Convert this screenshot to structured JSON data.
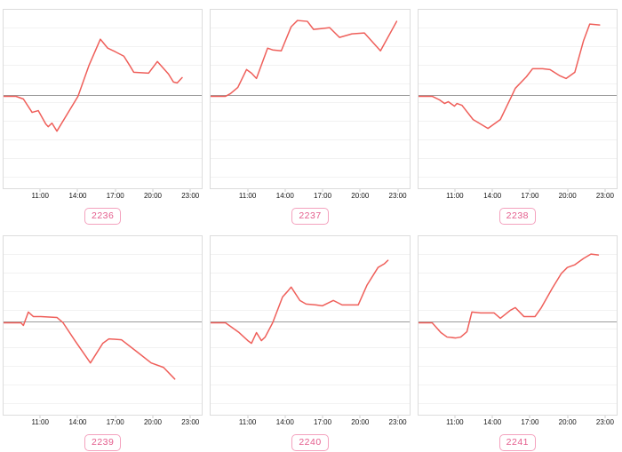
{
  "style": {
    "page_background": "#ffffff",
    "line_color": "#ef5f5a",
    "zero_line_color": "#9b9b9b",
    "grid_color": "#f2f2f2",
    "plot_border_color": "#dcdcdc",
    "badge_border_color": "#f4a2be",
    "badge_text_color": "#e45c8c",
    "tick_label_color": "#141414"
  },
  "chrome": {
    "clipped_title_fragment": "()"
  },
  "axis": {
    "x_tick_labels": [
      "11:00",
      "14:00",
      "17:00",
      "20:00",
      "23:00"
    ],
    "x_tick_hours": [
      11,
      14,
      17,
      20,
      23
    ],
    "xlim_hours": [
      8,
      24
    ],
    "y_axis_labeled": false,
    "grid": "horizontal only",
    "baseline": "gray zero line at value 0"
  },
  "chart_data": [
    {
      "type": "line",
      "label": "2236",
      "x_tick_labels": [
        "11:00",
        "14:00",
        "17:00",
        "20:00",
        "23:00"
      ],
      "x_tick_hours": [
        11,
        14,
        17,
        20,
        23
      ],
      "xlim": [
        8,
        24
      ],
      "ylim_relative": [
        -103,
        97
      ],
      "y_unit": "relative (y axis unlabeled; 0 = gray baseline)",
      "points": [
        [
          8,
          0
        ],
        [
          9,
          0
        ],
        [
          9.6,
          -3
        ],
        [
          10.3,
          -18
        ],
        [
          10.8,
          -16
        ],
        [
          11.4,
          -31
        ],
        [
          11.6,
          -34
        ],
        [
          11.9,
          -30
        ],
        [
          12.3,
          -39
        ],
        [
          14,
          0
        ],
        [
          14.9,
          35
        ],
        [
          15.8,
          64
        ],
        [
          16.4,
          54
        ],
        [
          17,
          50
        ],
        [
          17.7,
          45
        ],
        [
          18.2,
          34
        ],
        [
          18.5,
          27
        ],
        [
          19.7,
          26
        ],
        [
          20.4,
          39
        ],
        [
          21.3,
          25
        ],
        [
          21.7,
          16
        ],
        [
          22,
          15
        ],
        [
          22.4,
          21
        ]
      ]
    },
    {
      "type": "line",
      "label": "2237",
      "x_tick_labels": [
        "11:00",
        "14:00",
        "17:00",
        "20:00",
        "23:00"
      ],
      "x_tick_hours": [
        11,
        14,
        17,
        20,
        23
      ],
      "xlim": [
        8,
        24
      ],
      "ylim_relative": [
        -103,
        97
      ],
      "y_unit": "relative (y axis unlabeled; 0 = gray baseline)",
      "points": [
        [
          8,
          0
        ],
        [
          9.2,
          0
        ],
        [
          9.6,
          3
        ],
        [
          10.2,
          10
        ],
        [
          10.9,
          30
        ],
        [
          11.3,
          26
        ],
        [
          11.7,
          20
        ],
        [
          12.6,
          54
        ],
        [
          13,
          52
        ],
        [
          13.7,
          51
        ],
        [
          14.5,
          78
        ],
        [
          15,
          85
        ],
        [
          15.8,
          84
        ],
        [
          16.3,
          75
        ],
        [
          17,
          76
        ],
        [
          17.6,
          77
        ],
        [
          18.4,
          66
        ],
        [
          19.4,
          70
        ],
        [
          20.4,
          71
        ],
        [
          21.7,
          51
        ],
        [
          23,
          84
        ]
      ]
    },
    {
      "type": "line",
      "label": "2238",
      "x_tick_labels": [
        "11:00",
        "14:00",
        "17:00",
        "20:00",
        "23:00"
      ],
      "x_tick_hours": [
        11,
        14,
        17,
        20,
        23
      ],
      "xlim": [
        8,
        24
      ],
      "ylim_relative": [
        -103,
        97
      ],
      "y_unit": "relative (y axis unlabeled; 0 = gray baseline)",
      "points": [
        [
          8,
          0
        ],
        [
          9.1,
          0
        ],
        [
          9.7,
          -4
        ],
        [
          10.1,
          -8
        ],
        [
          10.4,
          -6
        ],
        [
          10.9,
          -11
        ],
        [
          11.1,
          -8
        ],
        [
          11.5,
          -10
        ],
        [
          12.4,
          -26
        ],
        [
          13.6,
          -36
        ],
        [
          14.6,
          -26
        ],
        [
          15.5,
          0
        ],
        [
          15.8,
          9
        ],
        [
          16.7,
          22
        ],
        [
          17.2,
          31
        ],
        [
          18,
          31
        ],
        [
          18.6,
          30
        ],
        [
          19.4,
          23
        ],
        [
          19.9,
          20
        ],
        [
          20.6,
          27
        ],
        [
          21.3,
          62
        ],
        [
          21.8,
          81
        ],
        [
          22.6,
          80
        ]
      ]
    },
    {
      "type": "line",
      "label": "2239",
      "x_tick_labels": [
        "11:00",
        "14:00",
        "17:00",
        "20:00",
        "23:00"
      ],
      "x_tick_hours": [
        11,
        14,
        17,
        20,
        23
      ],
      "xlim": [
        8,
        24
      ],
      "ylim_relative": [
        -103,
        97
      ],
      "y_unit": "relative (y axis unlabeled; 0 = gray baseline)",
      "points": [
        [
          8,
          0
        ],
        [
          9.4,
          0
        ],
        [
          9.6,
          -3
        ],
        [
          10,
          12
        ],
        [
          10.4,
          7
        ],
        [
          11,
          7
        ],
        [
          12.3,
          6
        ],
        [
          12.8,
          0
        ],
        [
          13.8,
          -21
        ],
        [
          15,
          -45
        ],
        [
          16,
          -23
        ],
        [
          16.5,
          -18
        ],
        [
          17.5,
          -19
        ],
        [
          18.8,
          -33
        ],
        [
          19.9,
          -45
        ],
        [
          20.9,
          -50
        ],
        [
          21.8,
          -63
        ]
      ]
    },
    {
      "type": "line",
      "label": "2240",
      "x_tick_labels": [
        "11:00",
        "14:00",
        "17:00",
        "20:00",
        "23:00"
      ],
      "x_tick_hours": [
        11,
        14,
        17,
        20,
        23
      ],
      "xlim": [
        8,
        24
      ],
      "ylim_relative": [
        -103,
        97
      ],
      "y_unit": "relative (y axis unlabeled; 0 = gray baseline)",
      "points": [
        [
          8,
          0
        ],
        [
          9.2,
          0
        ],
        [
          10.3,
          -11
        ],
        [
          11,
          -20
        ],
        [
          11.3,
          -23
        ],
        [
          11.7,
          -11
        ],
        [
          12.1,
          -20
        ],
        [
          12.4,
          -16
        ],
        [
          13,
          0
        ],
        [
          13.8,
          29
        ],
        [
          14.2,
          35
        ],
        [
          14.5,
          40
        ],
        [
          15.2,
          25
        ],
        [
          15.7,
          21
        ],
        [
          16.5,
          20
        ],
        [
          17,
          19
        ],
        [
          17.9,
          25
        ],
        [
          18.6,
          20
        ],
        [
          19.9,
          20
        ],
        [
          20.6,
          42
        ],
        [
          21.5,
          62
        ],
        [
          22,
          66
        ],
        [
          22.3,
          70
        ]
      ]
    },
    {
      "type": "line",
      "label": "2241",
      "x_tick_labels": [
        "11:00",
        "14:00",
        "17:00",
        "20:00",
        "23:00"
      ],
      "x_tick_hours": [
        11,
        14,
        17,
        20,
        23
      ],
      "xlim": [
        8,
        24
      ],
      "ylim_relative": [
        -103,
        97
      ],
      "y_unit": "relative (y axis unlabeled; 0 = gray baseline)",
      "points": [
        [
          8,
          0
        ],
        [
          9.1,
          0
        ],
        [
          9.8,
          -11
        ],
        [
          10.3,
          -16
        ],
        [
          11,
          -17
        ],
        [
          11.4,
          -16
        ],
        [
          11.9,
          -10
        ],
        [
          12.3,
          12
        ],
        [
          13,
          11
        ],
        [
          14.1,
          11
        ],
        [
          14.6,
          5
        ],
        [
          15.4,
          14
        ],
        [
          15.8,
          17
        ],
        [
          16.5,
          7
        ],
        [
          17.4,
          7
        ],
        [
          17.9,
          17
        ],
        [
          18.8,
          39
        ],
        [
          19.5,
          55
        ],
        [
          20,
          62
        ],
        [
          20.6,
          65
        ],
        [
          21.3,
          72
        ],
        [
          21.9,
          77
        ],
        [
          22.5,
          76
        ]
      ]
    }
  ]
}
